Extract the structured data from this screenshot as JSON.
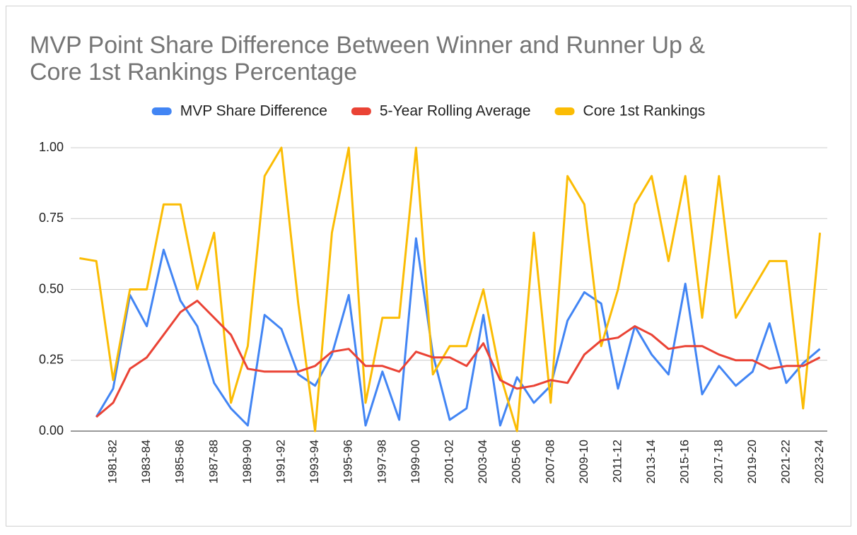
{
  "chart_data": {
    "type": "line",
    "title": [
      "MVP Point Share Difference Between Winner and Runner Up &",
      "Core 1st Rankings Percentage"
    ],
    "categories": [
      null,
      null,
      "1981-82",
      null,
      "1983-84",
      null,
      "1985-86",
      null,
      "1987-88",
      null,
      "1989-90",
      null,
      "1991-92",
      null,
      "1993-94",
      null,
      "1995-96",
      null,
      "1997-98",
      null,
      "1999-00",
      null,
      "2001-02",
      null,
      "2003-04",
      null,
      "2005-06",
      null,
      "2007-08",
      null,
      "2009-10",
      null,
      "2011-12",
      null,
      "2013-14",
      null,
      "2015-16",
      null,
      "2017-18",
      null,
      "2019-20",
      null,
      "2021-22",
      null,
      "2023-24"
    ],
    "series": [
      {
        "name": "MVP Share Difference",
        "color": "#4285f4",
        "values": [
          null,
          0.05,
          0.15,
          0.48,
          0.37,
          0.64,
          0.46,
          0.37,
          0.17,
          0.08,
          0.02,
          0.41,
          0.36,
          0.2,
          0.16,
          0.27,
          0.48,
          0.02,
          0.21,
          0.04,
          0.68,
          0.27,
          0.04,
          0.08,
          0.41,
          0.02,
          0.19,
          0.1,
          0.16,
          0.39,
          0.49,
          0.45,
          0.15,
          0.37,
          0.27,
          0.2,
          0.52,
          0.13,
          0.23,
          0.16,
          0.21,
          0.38,
          0.17,
          0.24,
          0.29
        ]
      },
      {
        "name": "5-Year Rolling Average",
        "color": "#ea4335",
        "values": [
          null,
          0.05,
          0.1,
          0.22,
          0.26,
          0.34,
          0.42,
          0.46,
          0.4,
          0.34,
          0.22,
          0.21,
          0.21,
          0.21,
          0.23,
          0.28,
          0.29,
          0.23,
          0.23,
          0.21,
          0.28,
          0.26,
          0.26,
          0.23,
          0.31,
          0.18,
          0.15,
          0.16,
          0.18,
          0.17,
          0.27,
          0.32,
          0.33,
          0.37,
          0.34,
          0.29,
          0.3,
          0.3,
          0.27,
          0.25,
          0.25,
          0.22,
          0.23,
          0.23,
          0.26
        ]
      },
      {
        "name": "Core 1st Rankings",
        "color": "#fbbc04",
        "values": [
          0.61,
          0.6,
          0.18,
          0.5,
          0.5,
          0.8,
          0.8,
          0.5,
          0.7,
          0.1,
          0.3,
          0.9,
          1.0,
          0.45,
          0.0,
          0.7,
          1.0,
          0.1,
          0.4,
          0.4,
          1.0,
          0.2,
          0.3,
          0.3,
          0.5,
          0.2,
          0.0,
          0.7,
          0.1,
          0.9,
          0.8,
          0.3,
          0.5,
          0.8,
          0.9,
          0.6,
          0.9,
          0.4,
          0.9,
          0.4,
          0.5,
          0.6,
          0.6,
          0.08,
          0.7
        ]
      }
    ],
    "ylim": [
      0,
      1
    ],
    "yticks": [
      {
        "value": 0,
        "label": "0.00"
      },
      {
        "value": 0.25,
        "label": "0.25"
      },
      {
        "value": 0.5,
        "label": "0.50"
      },
      {
        "value": 0.75,
        "label": "0.75"
      },
      {
        "value": 1,
        "label": "1.00"
      }
    ],
    "grid": true,
    "legend": "top"
  }
}
